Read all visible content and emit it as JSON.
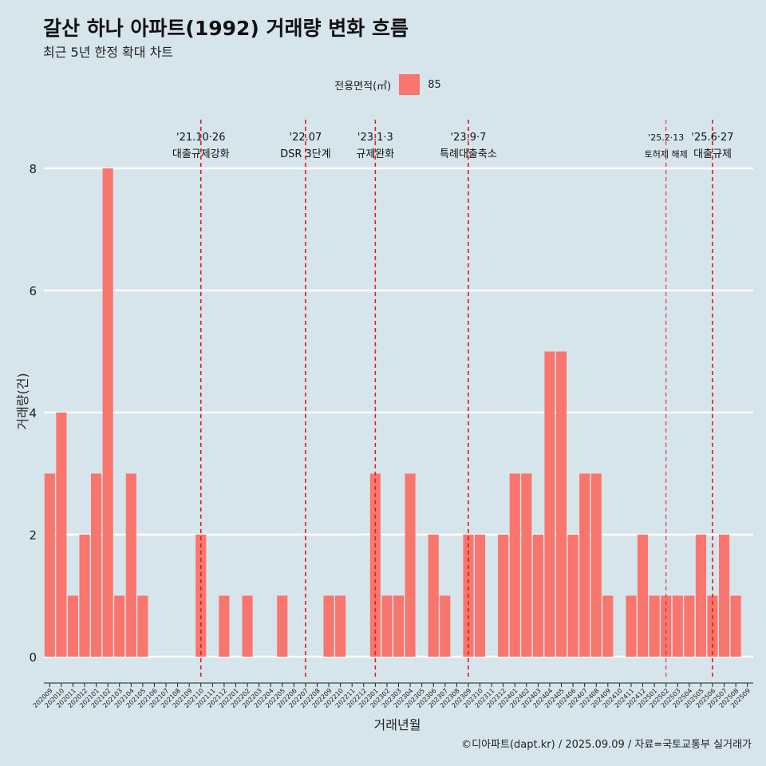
{
  "header": {
    "title": "갈산 하나 아파트(1992) 거래량 변화 흐름",
    "subtitle": "최근 5년 한정 확대 차트"
  },
  "legend": {
    "title": "전용면적(㎡)",
    "entries": [
      "85"
    ]
  },
  "caption": "©디아파트(dapt.kr) / 2025.09.09 / 자료=국토교통부 실거래가",
  "colors": {
    "bar": "#f8766d",
    "vline": "#e31a1c",
    "grid": "#ffffff",
    "background": "#d6e4eb"
  },
  "chart_data": {
    "type": "bar",
    "title": "갈산 하나 아파트(1992) 거래량 변화 흐름",
    "xlabel": "거래년월",
    "ylabel": "거래량(건)",
    "ylim": [
      0,
      8
    ],
    "yticks": [
      0,
      2,
      4,
      6,
      8
    ],
    "grid": true,
    "legend_position": "top",
    "categories": [
      "202009",
      "202010",
      "202011",
      "202012",
      "202101",
      "202102",
      "202103",
      "202104",
      "202105",
      "202106",
      "202107",
      "202108",
      "202109",
      "202110",
      "202111",
      "202112",
      "202201",
      "202202",
      "202203",
      "202204",
      "202205",
      "202206",
      "202207",
      "202208",
      "202209",
      "202210",
      "202211",
      "202212",
      "202301",
      "202302",
      "202303",
      "202304",
      "202305",
      "202306",
      "202307",
      "202308",
      "202309",
      "202310",
      "202311",
      "202312",
      "202401",
      "202402",
      "202403",
      "202404",
      "202405",
      "202406",
      "202407",
      "202408",
      "202409",
      "202410",
      "202411",
      "202412",
      "202501",
      "202502",
      "202503",
      "202504",
      "202505",
      "202506",
      "202507",
      "202508",
      "202509"
    ],
    "series": [
      {
        "name": "85",
        "values": [
          3,
          4,
          1,
          2,
          3,
          8,
          1,
          3,
          1,
          0,
          0,
          0,
          0,
          2,
          0,
          1,
          0,
          1,
          0,
          0,
          1,
          0,
          0,
          0,
          1,
          1,
          0,
          0,
          3,
          1,
          1,
          3,
          0,
          2,
          1,
          0,
          2,
          2,
          0,
          2,
          3,
          3,
          2,
          5,
          5,
          2,
          3,
          3,
          1,
          0,
          1,
          2,
          1,
          1,
          1,
          1,
          2,
          1,
          2,
          1,
          0
        ]
      }
    ],
    "annotations": [
      {
        "date": "'21.10·26",
        "label": "대출규제강화",
        "at": "202110",
        "style": "dashed"
      },
      {
        "date": "'22.07",
        "label": "DSR 3단계",
        "at": "202207",
        "style": "dashed"
      },
      {
        "date": "'23.1·3",
        "label": "규제완화",
        "at": "202301",
        "style": "dashed"
      },
      {
        "date": "'23.9·7",
        "label": "특례대출축소",
        "at": "202309",
        "style": "dashed"
      },
      {
        "date": "'25.2·13",
        "label": "토허제 해제",
        "at": "202502",
        "style": "thin-dashed"
      },
      {
        "date": "'25.6·27",
        "label": "대출규제",
        "at": "202506",
        "style": "dashed"
      }
    ]
  }
}
